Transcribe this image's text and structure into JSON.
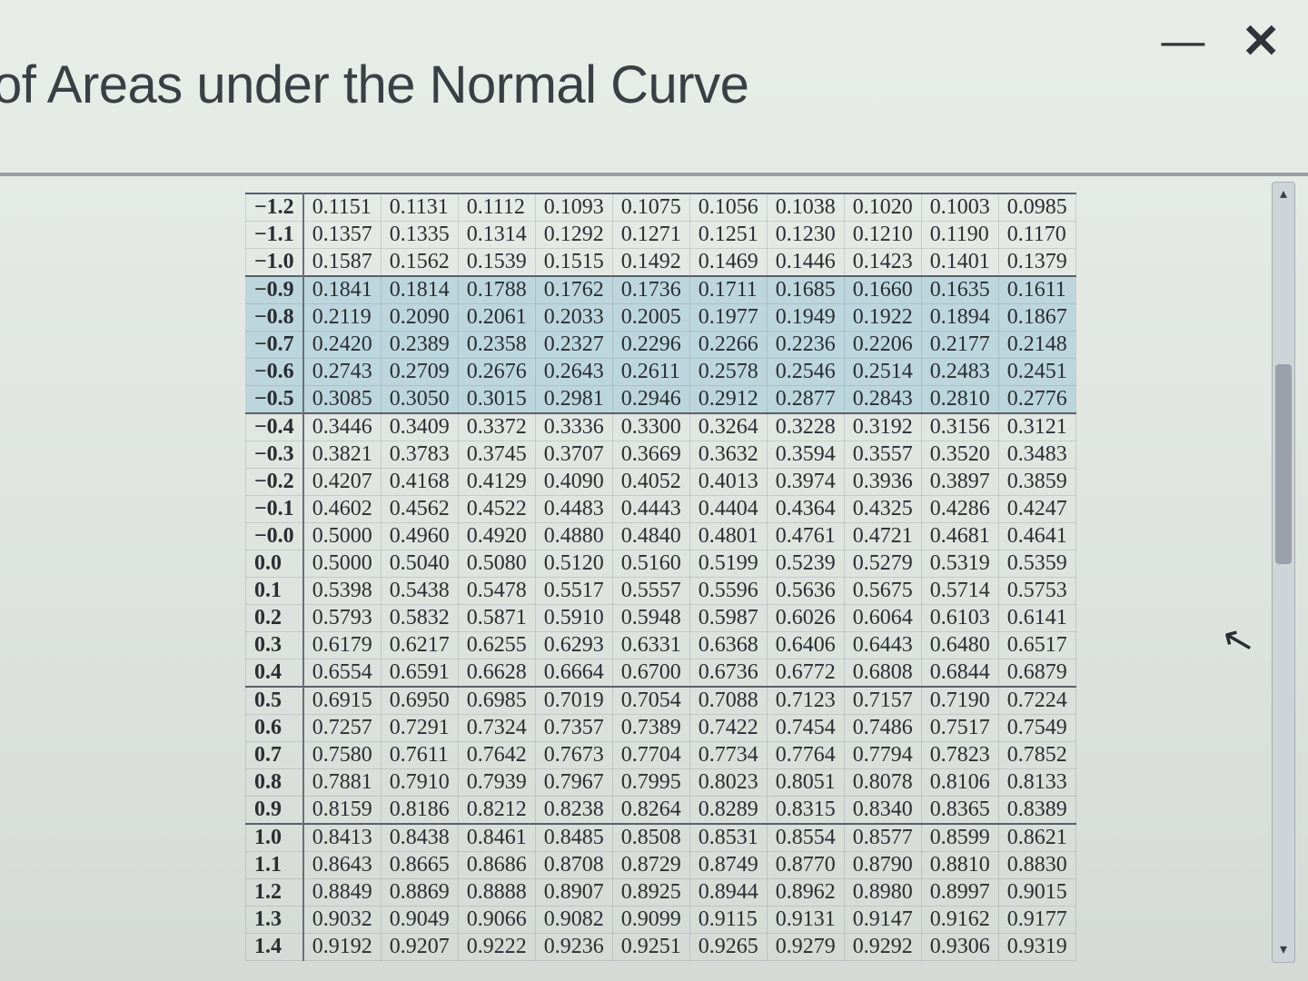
{
  "window": {
    "title": "of Areas under the Normal Curve",
    "minimize_glyph": "—",
    "close_glyph": "✕"
  },
  "style": {
    "heading_fontsize": 58,
    "heading_color": "#3a3f44",
    "table_font": "Times New Roman",
    "table_fontsize": 24,
    "table_text_color": "#2a2d32",
    "border_color": "rgba(120,128,138,0.25)",
    "group_border_color": "#5a5f68",
    "highlight_bg": "rgba(142,192,216,0.45)",
    "background": "#e8ede8",
    "scrollbar_track": "#cfd4d9",
    "scrollbar_thumb": "#9aa1aa"
  },
  "table": {
    "z_labels": [
      "−1.2",
      "−1.1",
      "−1.0",
      "−0.9",
      "−0.8",
      "−0.7",
      "−0.6",
      "−0.5",
      "−0.4",
      "−0.3",
      "−0.2",
      "−0.1",
      "−0.0",
      "0.0",
      "0.1",
      "0.2",
      "0.3",
      "0.4",
      "0.5",
      "0.6",
      "0.7",
      "0.8",
      "0.9",
      "1.0",
      "1.1",
      "1.2",
      "1.3",
      "1.4"
    ],
    "group_starts": [
      0,
      3,
      8,
      18,
      23
    ],
    "highlight_rows": [
      3,
      4,
      5,
      6,
      7
    ],
    "rows": [
      [
        "0.1151",
        "0.1131",
        "0.1112",
        "0.1093",
        "0.1075",
        "0.1056",
        "0.1038",
        "0.1020",
        "0.1003",
        "0.0985"
      ],
      [
        "0.1357",
        "0.1335",
        "0.1314",
        "0.1292",
        "0.1271",
        "0.1251",
        "0.1230",
        "0.1210",
        "0.1190",
        "0.1170"
      ],
      [
        "0.1587",
        "0.1562",
        "0.1539",
        "0.1515",
        "0.1492",
        "0.1469",
        "0.1446",
        "0.1423",
        "0.1401",
        "0.1379"
      ],
      [
        "0.1841",
        "0.1814",
        "0.1788",
        "0.1762",
        "0.1736",
        "0.1711",
        "0.1685",
        "0.1660",
        "0.1635",
        "0.1611"
      ],
      [
        "0.2119",
        "0.2090",
        "0.2061",
        "0.2033",
        "0.2005",
        "0.1977",
        "0.1949",
        "0.1922",
        "0.1894",
        "0.1867"
      ],
      [
        "0.2420",
        "0.2389",
        "0.2358",
        "0.2327",
        "0.2296",
        "0.2266",
        "0.2236",
        "0.2206",
        "0.2177",
        "0.2148"
      ],
      [
        "0.2743",
        "0.2709",
        "0.2676",
        "0.2643",
        "0.2611",
        "0.2578",
        "0.2546",
        "0.2514",
        "0.2483",
        "0.2451"
      ],
      [
        "0.3085",
        "0.3050",
        "0.3015",
        "0.2981",
        "0.2946",
        "0.2912",
        "0.2877",
        "0.2843",
        "0.2810",
        "0.2776"
      ],
      [
        "0.3446",
        "0.3409",
        "0.3372",
        "0.3336",
        "0.3300",
        "0.3264",
        "0.3228",
        "0.3192",
        "0.3156",
        "0.3121"
      ],
      [
        "0.3821",
        "0.3783",
        "0.3745",
        "0.3707",
        "0.3669",
        "0.3632",
        "0.3594",
        "0.3557",
        "0.3520",
        "0.3483"
      ],
      [
        "0.4207",
        "0.4168",
        "0.4129",
        "0.4090",
        "0.4052",
        "0.4013",
        "0.3974",
        "0.3936",
        "0.3897",
        "0.3859"
      ],
      [
        "0.4602",
        "0.4562",
        "0.4522",
        "0.4483",
        "0.4443",
        "0.4404",
        "0.4364",
        "0.4325",
        "0.4286",
        "0.4247"
      ],
      [
        "0.5000",
        "0.4960",
        "0.4920",
        "0.4880",
        "0.4840",
        "0.4801",
        "0.4761",
        "0.4721",
        "0.4681",
        "0.4641"
      ],
      [
        "0.5000",
        "0.5040",
        "0.5080",
        "0.5120",
        "0.5160",
        "0.5199",
        "0.5239",
        "0.5279",
        "0.5319",
        "0.5359"
      ],
      [
        "0.5398",
        "0.5438",
        "0.5478",
        "0.5517",
        "0.5557",
        "0.5596",
        "0.5636",
        "0.5675",
        "0.5714",
        "0.5753"
      ],
      [
        "0.5793",
        "0.5832",
        "0.5871",
        "0.5910",
        "0.5948",
        "0.5987",
        "0.6026",
        "0.6064",
        "0.6103",
        "0.6141"
      ],
      [
        "0.6179",
        "0.6217",
        "0.6255",
        "0.6293",
        "0.6331",
        "0.6368",
        "0.6406",
        "0.6443",
        "0.6480",
        "0.6517"
      ],
      [
        "0.6554",
        "0.6591",
        "0.6628",
        "0.6664",
        "0.6700",
        "0.6736",
        "0.6772",
        "0.6808",
        "0.6844",
        "0.6879"
      ],
      [
        "0.6915",
        "0.6950",
        "0.6985",
        "0.7019",
        "0.7054",
        "0.7088",
        "0.7123",
        "0.7157",
        "0.7190",
        "0.7224"
      ],
      [
        "0.7257",
        "0.7291",
        "0.7324",
        "0.7357",
        "0.7389",
        "0.7422",
        "0.7454",
        "0.7486",
        "0.7517",
        "0.7549"
      ],
      [
        "0.7580",
        "0.7611",
        "0.7642",
        "0.7673",
        "0.7704",
        "0.7734",
        "0.7764",
        "0.7794",
        "0.7823",
        "0.7852"
      ],
      [
        "0.7881",
        "0.7910",
        "0.7939",
        "0.7967",
        "0.7995",
        "0.8023",
        "0.8051",
        "0.8078",
        "0.8106",
        "0.8133"
      ],
      [
        "0.8159",
        "0.8186",
        "0.8212",
        "0.8238",
        "0.8264",
        "0.8289",
        "0.8315",
        "0.8340",
        "0.8365",
        "0.8389"
      ],
      [
        "0.8413",
        "0.8438",
        "0.8461",
        "0.8485",
        "0.8508",
        "0.8531",
        "0.8554",
        "0.8577",
        "0.8599",
        "0.8621"
      ],
      [
        "0.8643",
        "0.8665",
        "0.8686",
        "0.8708",
        "0.8729",
        "0.8749",
        "0.8770",
        "0.8790",
        "0.8810",
        "0.8830"
      ],
      [
        "0.8849",
        "0.8869",
        "0.8888",
        "0.8907",
        "0.8925",
        "0.8944",
        "0.8962",
        "0.8980",
        "0.8997",
        "0.9015"
      ],
      [
        "0.9032",
        "0.9049",
        "0.9066",
        "0.9082",
        "0.9099",
        "0.9115",
        "0.9131",
        "0.9147",
        "0.9162",
        "0.9177"
      ],
      [
        "0.9192",
        "0.9207",
        "0.9222",
        "0.9236",
        "0.9251",
        "0.9265",
        "0.9279",
        "0.9292",
        "0.9306",
        "0.9319"
      ]
    ]
  },
  "scrollbar": {
    "up_glyph": "▴",
    "down_glyph": "▾"
  },
  "cursor_glyph": "↖"
}
